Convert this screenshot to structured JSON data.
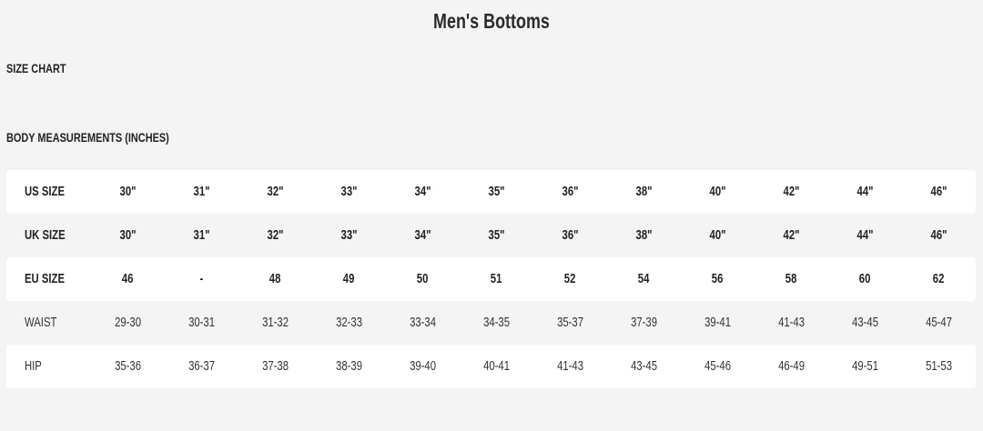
{
  "title": "Men's Bottoms",
  "size_chart_label": "SIZE CHART",
  "body_measurements_label": "BODY MEASUREMENTS (INCHES)",
  "table": {
    "rows": [
      {
        "label": "US SIZE",
        "values": [
          "30\"",
          "31\"",
          "32\"",
          "33\"",
          "34\"",
          "35\"",
          "36\"",
          "38\"",
          "40\"",
          "42\"",
          "44\"",
          "46\""
        ]
      },
      {
        "label": "UK SIZE",
        "values": [
          "30\"",
          "31\"",
          "32\"",
          "33\"",
          "34\"",
          "35\"",
          "36\"",
          "38\"",
          "40\"",
          "42\"",
          "44\"",
          "46\""
        ]
      },
      {
        "label": "EU SIZE",
        "values": [
          "46",
          "-",
          "48",
          "49",
          "50",
          "51",
          "52",
          "54",
          "56",
          "58",
          "60",
          "62"
        ]
      },
      {
        "label": "WAIST",
        "values": [
          "29-30",
          "30-31",
          "31-32",
          "32-33",
          "33-34",
          "34-35",
          "35-37",
          "37-39",
          "39-41",
          "41-43",
          "43-45",
          "45-47"
        ]
      },
      {
        "label": "HIP",
        "values": [
          "35-36",
          "36-37",
          "37-38",
          "38-39",
          "39-40",
          "40-41",
          "41-43",
          "43-45",
          "45-46",
          "46-49",
          "49-51",
          "51-53"
        ]
      }
    ]
  }
}
